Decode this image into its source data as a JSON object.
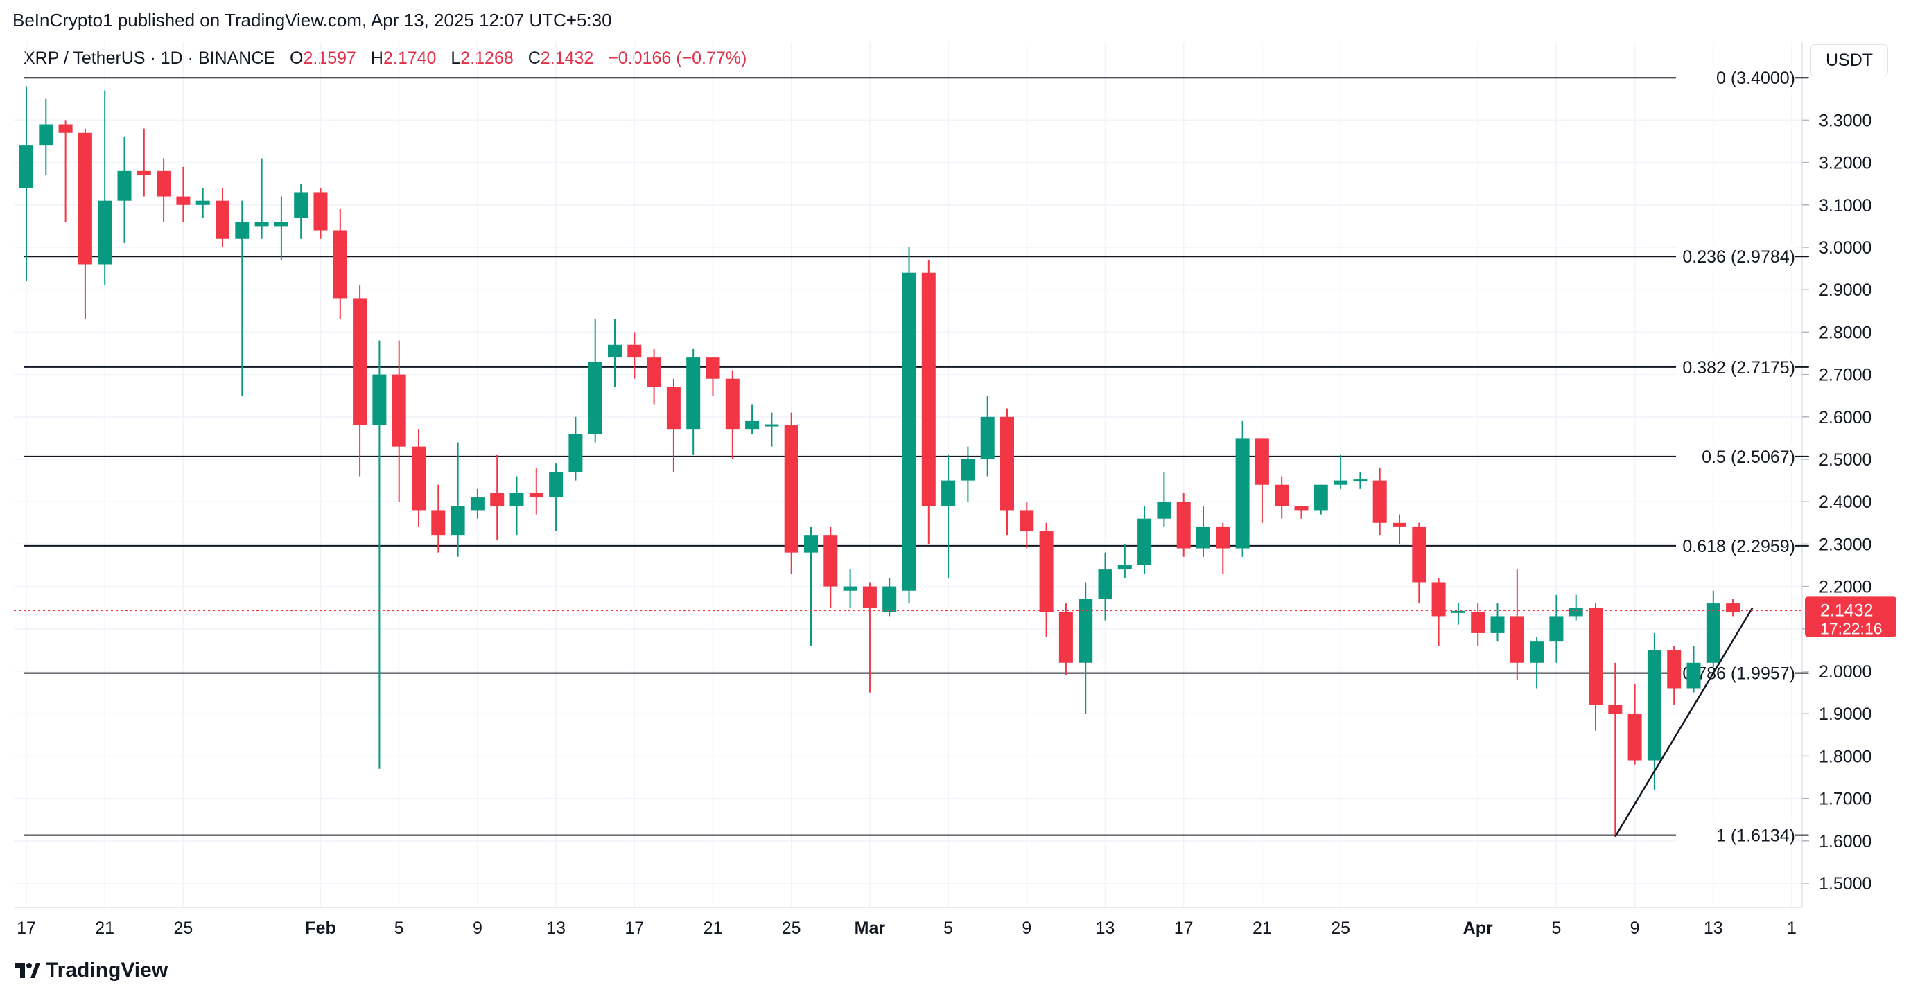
{
  "header": {
    "publisher": "BeInCrypto1 published on TradingView.com, Apr 13, 2025 12:07 UTC+5:30",
    "symbol": "XRP / TetherUS · 1D · BINANCE",
    "o_label": "O",
    "o_value": "2.1597",
    "h_label": "H",
    "h_value": "2.1740",
    "l_label": "L",
    "l_value": "2.1268",
    "c_label": "C",
    "c_value": "2.1432",
    "change": "−0.0166 (−0.77%)",
    "currency": "USDT"
  },
  "footer": {
    "brand": "TradingView"
  },
  "colors": {
    "up": "#089981",
    "down": "#f23645",
    "price_line": "#f23645"
  },
  "chart_data": {
    "type": "candlestick",
    "pair": "XRP / TetherUS",
    "interval": "1D",
    "exchange": "BINANCE",
    "ylim": [
      1.45,
      3.43
    ],
    "y_ticks": [
      "3.3000",
      "3.2000",
      "3.1000",
      "3.0000",
      "2.9000",
      "2.8000",
      "2.7000",
      "2.6000",
      "2.5000",
      "2.4000",
      "2.3000",
      "2.2000",
      "2.1000",
      "2.0000",
      "1.9000",
      "1.8000",
      "1.7000",
      "1.6000",
      "1.5000"
    ],
    "x_ticks": [
      {
        "label": "17",
        "day": 0,
        "bold": false
      },
      {
        "label": "21",
        "day": 4,
        "bold": false
      },
      {
        "label": "25",
        "day": 8,
        "bold": false
      },
      {
        "label": "Feb",
        "day": 15,
        "bold": true
      },
      {
        "label": "5",
        "day": 19,
        "bold": false
      },
      {
        "label": "9",
        "day": 23,
        "bold": false
      },
      {
        "label": "13",
        "day": 27,
        "bold": false
      },
      {
        "label": "17",
        "day": 31,
        "bold": false
      },
      {
        "label": "21",
        "day": 35,
        "bold": false
      },
      {
        "label": "25",
        "day": 39,
        "bold": false
      },
      {
        "label": "Mar",
        "day": 43,
        "bold": true
      },
      {
        "label": "5",
        "day": 47,
        "bold": false
      },
      {
        "label": "9",
        "day": 51,
        "bold": false
      },
      {
        "label": "13",
        "day": 55,
        "bold": false
      },
      {
        "label": "17",
        "day": 59,
        "bold": false
      },
      {
        "label": "21",
        "day": 63,
        "bold": false
      },
      {
        "label": "25",
        "day": 67,
        "bold": false
      },
      {
        "label": "Apr",
        "day": 74,
        "bold": true
      },
      {
        "label": "5",
        "day": 78,
        "bold": false
      },
      {
        "label": "9",
        "day": 82,
        "bold": false
      },
      {
        "label": "13",
        "day": 86,
        "bold": false
      },
      {
        "label": "1",
        "day": 90,
        "bold": false
      }
    ],
    "candles": [
      [
        3.14,
        3.24,
        3.38,
        2.92
      ],
      [
        3.24,
        3.29,
        3.35,
        3.17
      ],
      [
        3.29,
        3.27,
        3.3,
        3.06
      ],
      [
        3.27,
        2.96,
        3.28,
        2.83
      ],
      [
        2.96,
        3.11,
        3.37,
        2.91
      ],
      [
        3.11,
        3.18,
        3.26,
        3.01
      ],
      [
        3.18,
        3.17,
        3.28,
        3.12
      ],
      [
        3.18,
        3.12,
        3.21,
        3.06
      ],
      [
        3.12,
        3.1,
        3.19,
        3.06
      ],
      [
        3.1,
        3.11,
        3.14,
        3.07
      ],
      [
        3.11,
        3.02,
        3.14,
        3.0
      ],
      [
        3.02,
        3.06,
        3.11,
        2.65
      ],
      [
        3.05,
        3.06,
        3.21,
        3.02
      ],
      [
        3.05,
        3.06,
        3.12,
        2.97
      ],
      [
        3.07,
        3.13,
        3.15,
        3.02
      ],
      [
        3.13,
        3.04,
        3.14,
        3.02
      ],
      [
        3.04,
        2.88,
        3.09,
        2.83
      ],
      [
        2.88,
        2.58,
        2.91,
        2.46
      ],
      [
        2.58,
        2.7,
        2.78,
        1.77
      ],
      [
        2.7,
        2.53,
        2.78,
        2.4
      ],
      [
        2.53,
        2.38,
        2.57,
        2.34
      ],
      [
        2.38,
        2.32,
        2.44,
        2.28
      ],
      [
        2.32,
        2.39,
        2.54,
        2.27
      ],
      [
        2.38,
        2.41,
        2.43,
        2.36
      ],
      [
        2.42,
        2.39,
        2.51,
        2.31
      ],
      [
        2.39,
        2.42,
        2.46,
        2.32
      ],
      [
        2.42,
        2.41,
        2.48,
        2.37
      ],
      [
        2.41,
        2.47,
        2.49,
        2.33
      ],
      [
        2.47,
        2.56,
        2.6,
        2.45
      ],
      [
        2.56,
        2.73,
        2.83,
        2.54
      ],
      [
        2.74,
        2.77,
        2.83,
        2.67
      ],
      [
        2.77,
        2.74,
        2.8,
        2.69
      ],
      [
        2.74,
        2.67,
        2.76,
        2.63
      ],
      [
        2.67,
        2.57,
        2.69,
        2.47
      ],
      [
        2.57,
        2.74,
        2.76,
        2.51
      ],
      [
        2.74,
        2.69,
        2.74,
        2.65
      ],
      [
        2.69,
        2.57,
        2.71,
        2.5
      ],
      [
        2.57,
        2.59,
        2.63,
        2.56
      ],
      [
        2.58,
        2.58,
        2.61,
        2.53
      ],
      [
        2.58,
        2.28,
        2.61,
        2.23
      ],
      [
        2.28,
        2.32,
        2.34,
        2.06
      ],
      [
        2.32,
        2.2,
        2.34,
        2.15
      ],
      [
        2.19,
        2.2,
        2.24,
        2.15
      ],
      [
        2.2,
        2.15,
        2.21,
        1.95
      ],
      [
        2.14,
        2.2,
        2.22,
        2.13
      ],
      [
        2.19,
        2.94,
        3.0,
        2.16
      ],
      [
        2.94,
        2.39,
        2.97,
        2.3
      ],
      [
        2.39,
        2.45,
        2.51,
        2.22
      ],
      [
        2.45,
        2.5,
        2.53,
        2.4
      ],
      [
        2.5,
        2.6,
        2.65,
        2.46
      ],
      [
        2.6,
        2.38,
        2.62,
        2.32
      ],
      [
        2.38,
        2.33,
        2.4,
        2.29
      ],
      [
        2.33,
        2.14,
        2.35,
        2.08
      ],
      [
        2.14,
        2.02,
        2.16,
        1.99
      ],
      [
        2.02,
        2.17,
        2.21,
        1.9
      ],
      [
        2.17,
        2.24,
        2.28,
        2.12
      ],
      [
        2.24,
        2.25,
        2.3,
        2.22
      ],
      [
        2.25,
        2.36,
        2.39,
        2.23
      ],
      [
        2.36,
        2.4,
        2.47,
        2.34
      ],
      [
        2.4,
        2.29,
        2.42,
        2.27
      ],
      [
        2.29,
        2.34,
        2.39,
        2.27
      ],
      [
        2.34,
        2.29,
        2.35,
        2.23
      ],
      [
        2.29,
        2.55,
        2.59,
        2.27
      ],
      [
        2.55,
        2.44,
        2.55,
        2.35
      ],
      [
        2.44,
        2.39,
        2.46,
        2.36
      ],
      [
        2.39,
        2.38,
        2.39,
        2.36
      ],
      [
        2.38,
        2.44,
        2.44,
        2.37
      ],
      [
        2.44,
        2.45,
        2.51,
        2.43
      ],
      [
        2.45,
        2.45,
        2.47,
        2.43
      ],
      [
        2.45,
        2.35,
        2.48,
        2.32
      ],
      [
        2.35,
        2.34,
        2.37,
        2.3
      ],
      [
        2.34,
        2.21,
        2.35,
        2.16
      ],
      [
        2.21,
        2.13,
        2.22,
        2.06
      ],
      [
        2.14,
        2.14,
        2.16,
        2.11
      ],
      [
        2.14,
        2.09,
        2.16,
        2.06
      ],
      [
        2.09,
        2.13,
        2.16,
        2.07
      ],
      [
        2.13,
        2.02,
        2.24,
        1.98
      ],
      [
        2.02,
        2.07,
        2.08,
        1.96
      ],
      [
        2.07,
        2.13,
        2.18,
        2.02
      ],
      [
        2.13,
        2.15,
        2.18,
        2.12
      ],
      [
        2.15,
        1.92,
        2.16,
        1.86
      ],
      [
        1.92,
        1.9,
        2.02,
        1.61
      ],
      [
        1.9,
        1.79,
        1.97,
        1.78
      ],
      [
        1.79,
        2.05,
        2.09,
        1.72
      ],
      [
        2.05,
        1.96,
        2.06,
        1.92
      ],
      [
        1.96,
        2.02,
        2.06,
        1.95
      ],
      [
        2.02,
        2.16,
        2.19,
        2.01
      ],
      [
        2.16,
        2.14,
        2.17,
        2.13
      ]
    ],
    "fib_levels": [
      {
        "label": "0 (3.4000)",
        "value": 3.4
      },
      {
        "label": "0.236 (2.9784)",
        "value": 2.9784
      },
      {
        "label": "0.382 (2.7175)",
        "value": 2.7175
      },
      {
        "label": "0.5 (2.5067)",
        "value": 2.5067
      },
      {
        "label": "0.618 (2.2959)",
        "value": 2.2959
      },
      {
        "label": "0.786 (1.9957)",
        "value": 1.9957
      },
      {
        "label": "1 (1.6134)",
        "value": 1.6134
      }
    ],
    "trendline": {
      "from": {
        "day": 81,
        "value": 1.61
      },
      "to": {
        "day": 88,
        "value": 2.15
      }
    },
    "last_price": {
      "value": 2.1432,
      "label": "2.1432",
      "countdown": "17:22:16"
    }
  }
}
